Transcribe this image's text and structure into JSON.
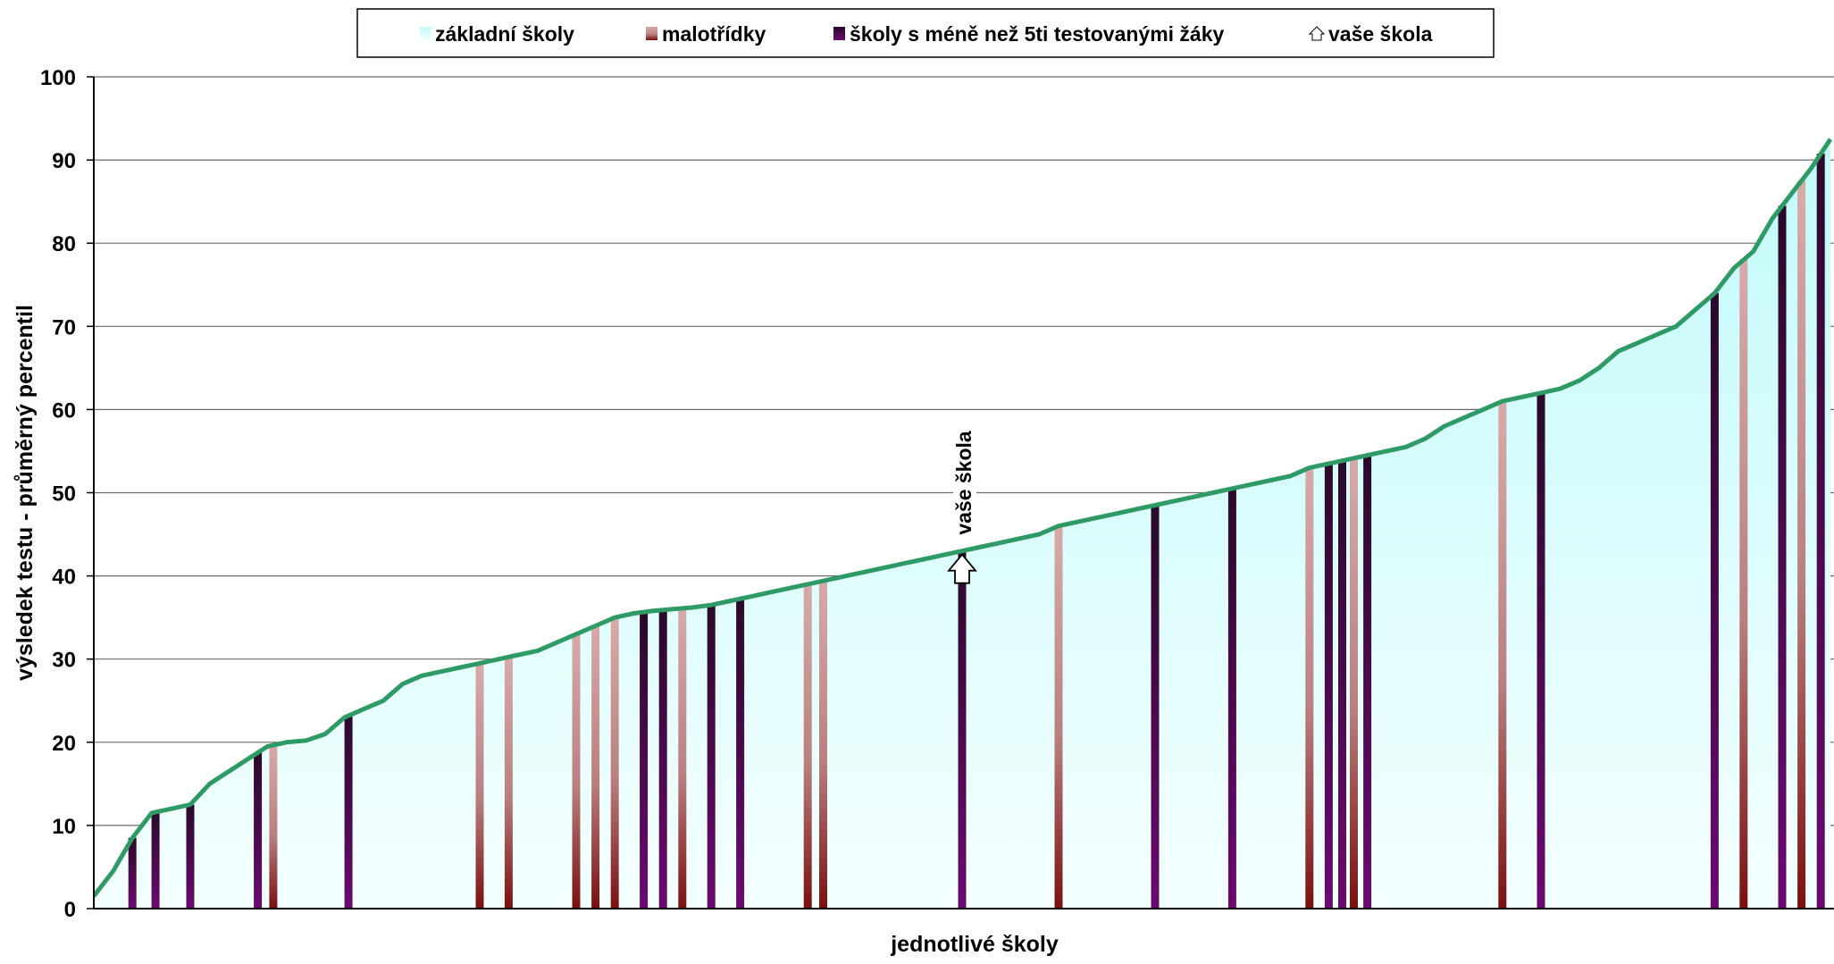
{
  "chart_data": {
    "type": "area",
    "title": "",
    "xlabel": "jednotlivé školy",
    "ylabel": "výsledek testu - průměrný percentil",
    "ylim": [
      0,
      100
    ],
    "yticks": [
      0,
      10,
      20,
      30,
      40,
      50,
      60,
      70,
      80,
      90,
      100
    ],
    "grid": true,
    "legend_position": "top",
    "legend": [
      {
        "label": "základní školy",
        "key": "zs",
        "color": "#ccffff"
      },
      {
        "label": "malotřídky",
        "key": "mt",
        "color": "#b96c6c"
      },
      {
        "label": "školy s méně než 5ti testovanými žáky",
        "key": "lt5",
        "color": "#5a0a50"
      },
      {
        "label": "vaše škola",
        "key": "home",
        "color": "#ffffff"
      }
    ],
    "your_school": {
      "label": "vaše škola",
      "value": 43.0
    },
    "curve_color": "#2e9a66",
    "series_sorted_curve": {
      "name": "základní školy",
      "points": [
        [
          0,
          1.5
        ],
        [
          1,
          4.5
        ],
        [
          2,
          8.5
        ],
        [
          3,
          11.5
        ],
        [
          4,
          12.0
        ],
        [
          5,
          12.5
        ],
        [
          6,
          15.0
        ],
        [
          7,
          16.5
        ],
        [
          8,
          18.0
        ],
        [
          9,
          19.5
        ],
        [
          10,
          20.0
        ],
        [
          11,
          20.2
        ],
        [
          12,
          21.0
        ],
        [
          13,
          23.0
        ],
        [
          14,
          24.0
        ],
        [
          15,
          25.0
        ],
        [
          16,
          27.0
        ],
        [
          17,
          28.0
        ],
        [
          18,
          28.5
        ],
        [
          19,
          29.0
        ],
        [
          20,
          29.5
        ],
        [
          21,
          30.0
        ],
        [
          22,
          30.5
        ],
        [
          23,
          31.0
        ],
        [
          24,
          32.0
        ],
        [
          25,
          33.0
        ],
        [
          26,
          34.0
        ],
        [
          27,
          35.0
        ],
        [
          28,
          35.5
        ],
        [
          29,
          35.8
        ],
        [
          30,
          36.0
        ],
        [
          31,
          36.2
        ],
        [
          32,
          36.5
        ],
        [
          33,
          37.0
        ],
        [
          34,
          37.5
        ],
        [
          35,
          38.0
        ],
        [
          36,
          38.5
        ],
        [
          37,
          39.0
        ],
        [
          38,
          39.5
        ],
        [
          39,
          40.0
        ],
        [
          40,
          40.5
        ],
        [
          41,
          41.0
        ],
        [
          42,
          41.5
        ],
        [
          43,
          42.0
        ],
        [
          44,
          42.5
        ],
        [
          45,
          43.0
        ],
        [
          46,
          43.5
        ],
        [
          47,
          44.0
        ],
        [
          48,
          44.5
        ],
        [
          49,
          45.0
        ],
        [
          50,
          46.0
        ],
        [
          51,
          46.5
        ],
        [
          52,
          47.0
        ],
        [
          53,
          47.5
        ],
        [
          54,
          48.0
        ],
        [
          55,
          48.5
        ],
        [
          56,
          49.0
        ],
        [
          57,
          49.5
        ],
        [
          58,
          50.0
        ],
        [
          59,
          50.5
        ],
        [
          60,
          51.0
        ],
        [
          61,
          51.5
        ],
        [
          62,
          52.0
        ],
        [
          63,
          53.0
        ],
        [
          64,
          53.5
        ],
        [
          65,
          54.0
        ],
        [
          66,
          54.5
        ],
        [
          67,
          55.0
        ],
        [
          68,
          55.5
        ],
        [
          69,
          56.5
        ],
        [
          70,
          58.0
        ],
        [
          71,
          59.0
        ],
        [
          72,
          60.0
        ],
        [
          73,
          61.0
        ],
        [
          74,
          61.5
        ],
        [
          75,
          62.0
        ],
        [
          76,
          62.5
        ],
        [
          77,
          63.5
        ],
        [
          78,
          65.0
        ],
        [
          79,
          67.0
        ],
        [
          80,
          68.0
        ],
        [
          81,
          69.0
        ],
        [
          82,
          70.0
        ],
        [
          83,
          72.0
        ],
        [
          84,
          74.0
        ],
        [
          85,
          77.0
        ],
        [
          86,
          79.0
        ],
        [
          87,
          83.0
        ],
        [
          88,
          86.0
        ],
        [
          89,
          89.0
        ],
        [
          90,
          92.5
        ]
      ]
    },
    "highlight_bars": [
      {
        "pos": 2,
        "type": "lt5"
      },
      {
        "pos": 3.2,
        "type": "lt5"
      },
      {
        "pos": 5.0,
        "type": "lt5"
      },
      {
        "pos": 8.5,
        "type": "lt5"
      },
      {
        "pos": 9.3,
        "type": "mt"
      },
      {
        "pos": 13.2,
        "type": "lt5"
      },
      {
        "pos": 20.0,
        "type": "mt"
      },
      {
        "pos": 21.5,
        "type": "mt"
      },
      {
        "pos": 25.0,
        "type": "mt"
      },
      {
        "pos": 26.0,
        "type": "mt"
      },
      {
        "pos": 27.0,
        "type": "mt"
      },
      {
        "pos": 28.5,
        "type": "lt5"
      },
      {
        "pos": 29.5,
        "type": "lt5"
      },
      {
        "pos": 30.5,
        "type": "mt"
      },
      {
        "pos": 32.0,
        "type": "lt5"
      },
      {
        "pos": 33.5,
        "type": "lt5"
      },
      {
        "pos": 37.0,
        "type": "mt"
      },
      {
        "pos": 37.8,
        "type": "mt"
      },
      {
        "pos": 45.0,
        "type": "lt5"
      },
      {
        "pos": 50.0,
        "type": "mt"
      },
      {
        "pos": 55.0,
        "type": "lt5"
      },
      {
        "pos": 59.0,
        "type": "lt5"
      },
      {
        "pos": 63.0,
        "type": "mt"
      },
      {
        "pos": 64.0,
        "type": "lt5"
      },
      {
        "pos": 64.7,
        "type": "lt5"
      },
      {
        "pos": 65.3,
        "type": "mt"
      },
      {
        "pos": 66.0,
        "type": "lt5"
      },
      {
        "pos": 73.0,
        "type": "mt"
      },
      {
        "pos": 75.0,
        "type": "lt5"
      },
      {
        "pos": 84.0,
        "type": "lt5"
      },
      {
        "pos": 85.5,
        "type": "mt"
      },
      {
        "pos": 87.5,
        "type": "lt5"
      },
      {
        "pos": 88.5,
        "type": "mt"
      },
      {
        "pos": 89.5,
        "type": "lt5"
      }
    ]
  }
}
